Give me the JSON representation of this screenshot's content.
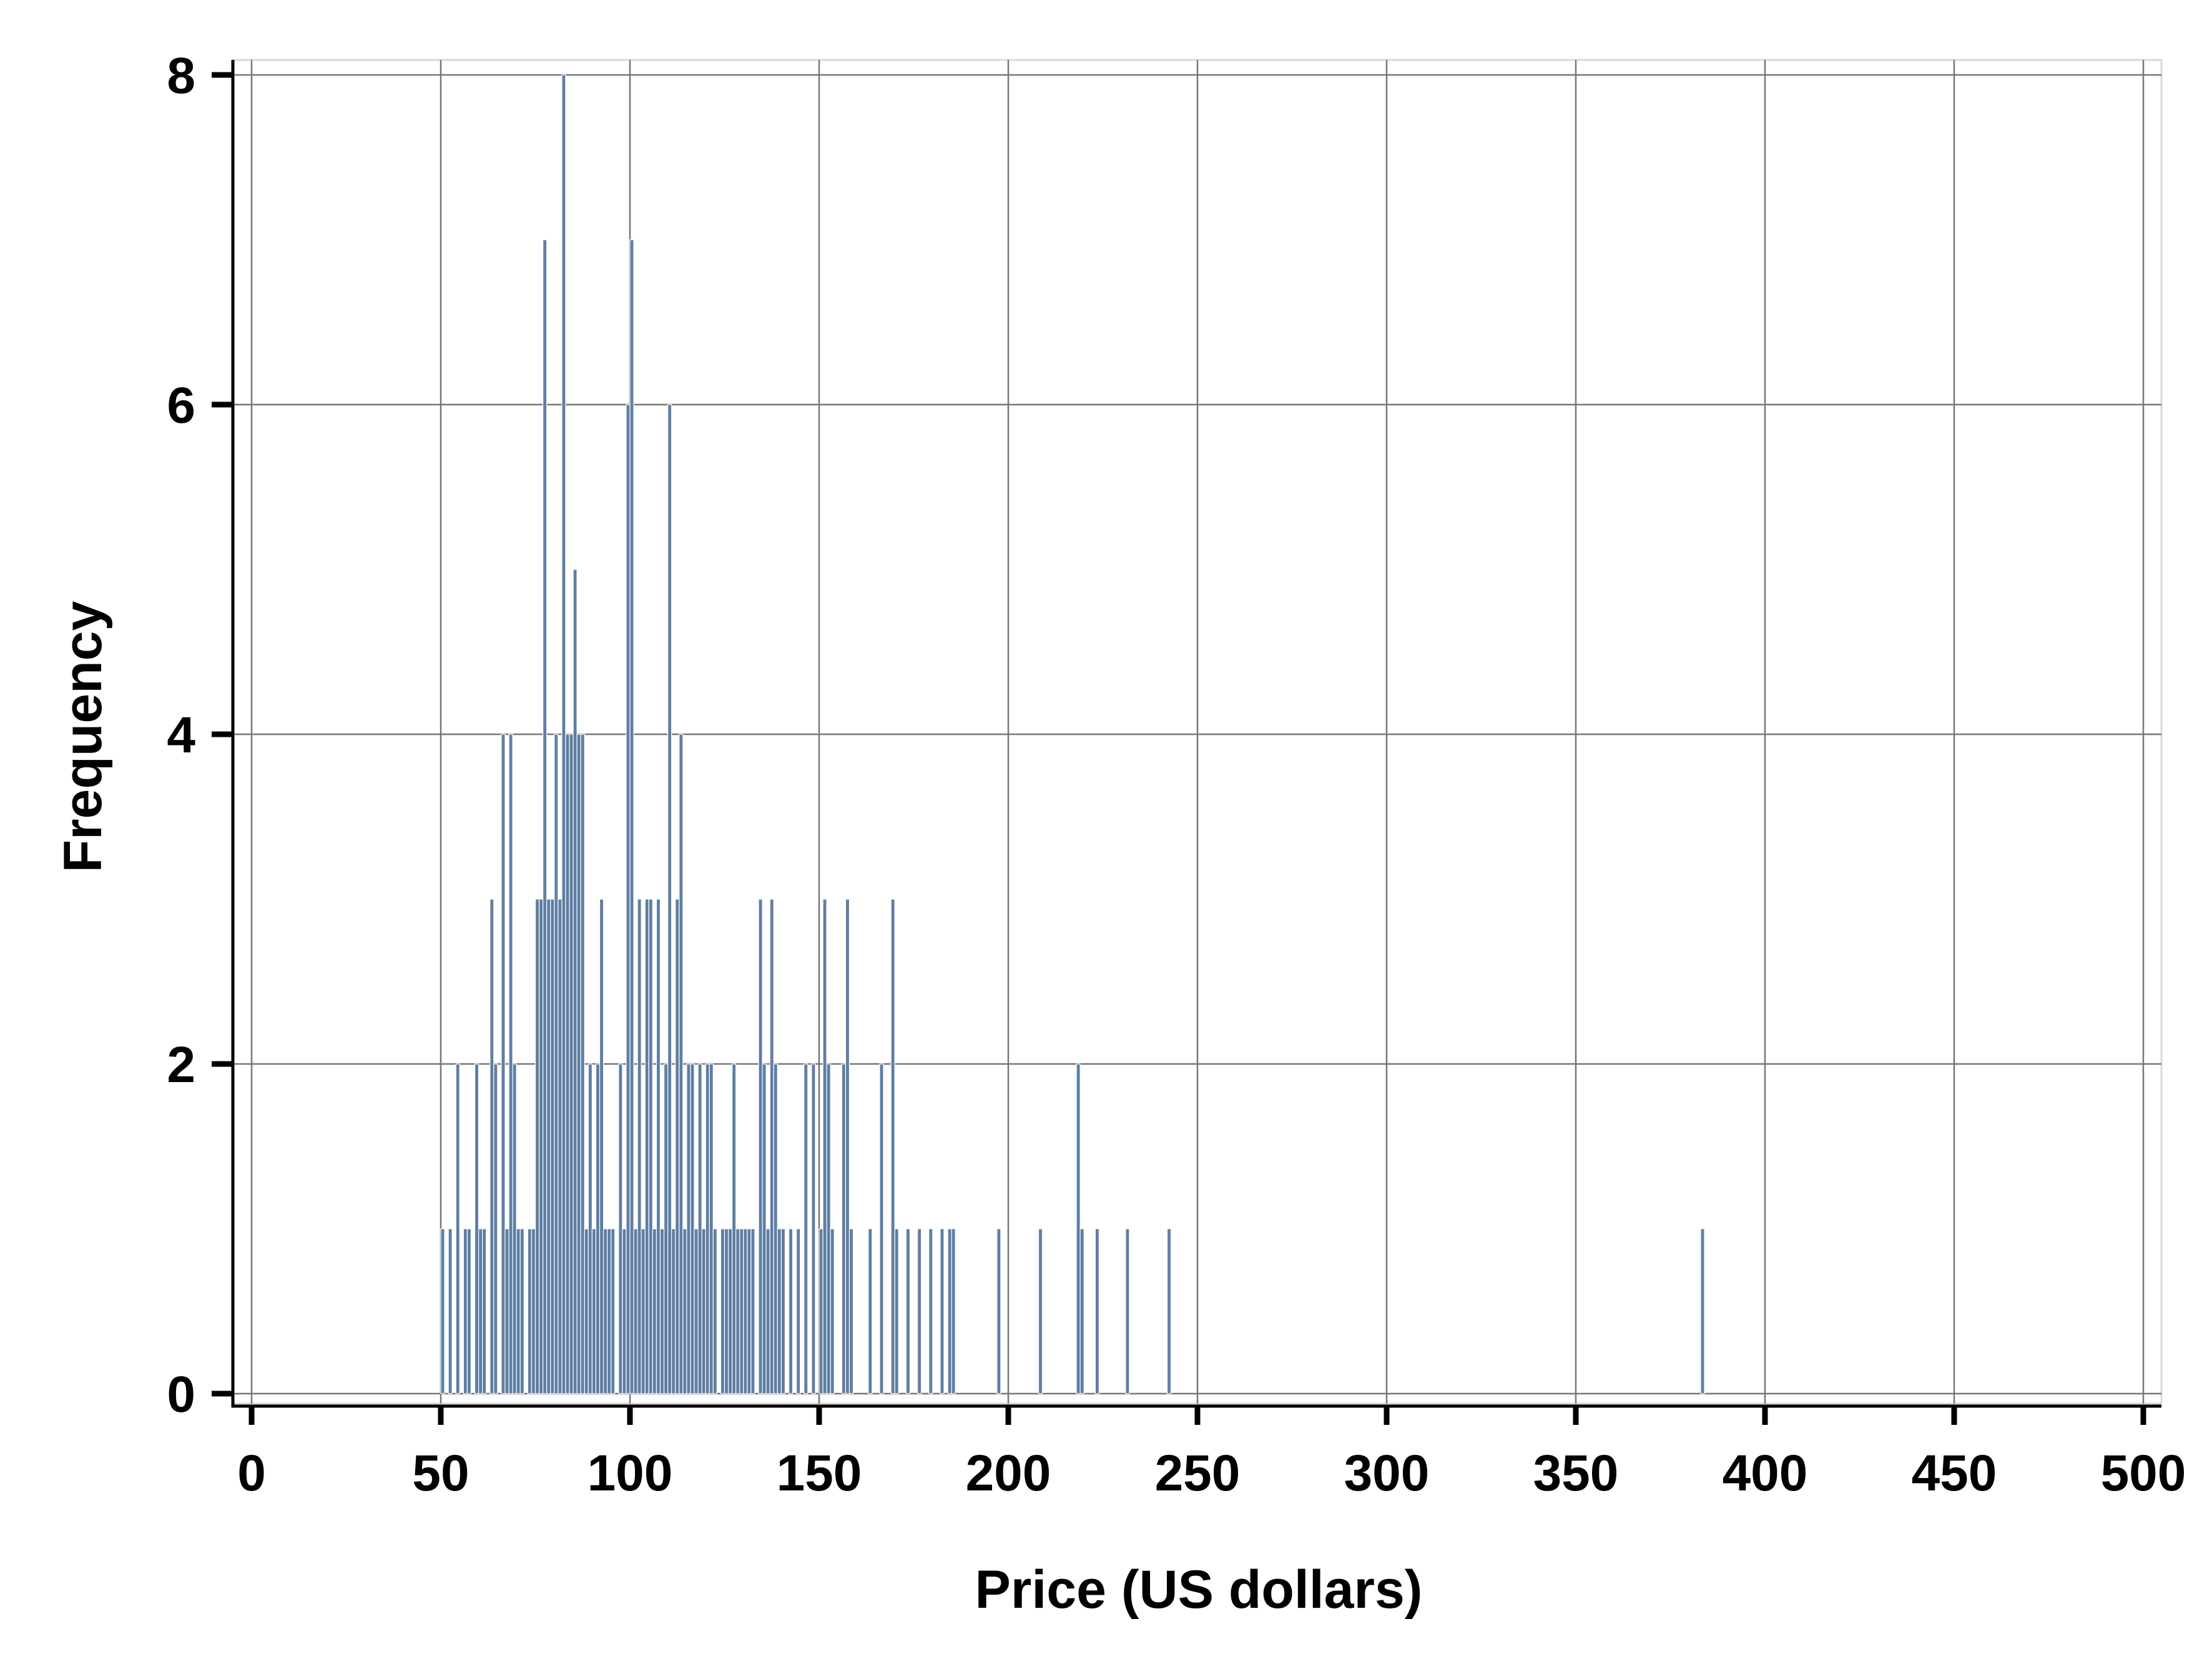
{
  "colors": {
    "bar": "#5f7ea3",
    "grid": "#777777",
    "axis": "#000000",
    "background": "#ffffff"
  },
  "chart_data": {
    "type": "bar",
    "title": "",
    "xlabel": "Price (US dollars)",
    "ylabel": "Frequency",
    "xlim": [
      0,
      500
    ],
    "ylim": [
      0,
      8
    ],
    "x_ticks": [
      "0",
      "50",
      "100",
      "150",
      "200",
      "250",
      "300",
      "350",
      "400",
      "450",
      "500"
    ],
    "y_ticks": [
      "0",
      "2",
      "4",
      "6",
      "8"
    ],
    "grid": true,
    "legend": "none",
    "bin_width": 1,
    "bars": [
      {
        "x": 50,
        "y": 1
      },
      {
        "x": 52,
        "y": 1
      },
      {
        "x": 54,
        "y": 2
      },
      {
        "x": 56,
        "y": 1
      },
      {
        "x": 57,
        "y": 1
      },
      {
        "x": 59,
        "y": 2
      },
      {
        "x": 60,
        "y": 1
      },
      {
        "x": 61,
        "y": 1
      },
      {
        "x": 63,
        "y": 3
      },
      {
        "x": 64,
        "y": 2
      },
      {
        "x": 66,
        "y": 4
      },
      {
        "x": 67,
        "y": 1
      },
      {
        "x": 68,
        "y": 4
      },
      {
        "x": 69,
        "y": 2
      },
      {
        "x": 70,
        "y": 1
      },
      {
        "x": 71,
        "y": 1
      },
      {
        "x": 73,
        "y": 1
      },
      {
        "x": 74,
        "y": 1
      },
      {
        "x": 75,
        "y": 3
      },
      {
        "x": 76,
        "y": 3
      },
      {
        "x": 77,
        "y": 7
      },
      {
        "x": 78,
        "y": 3
      },
      {
        "x": 79,
        "y": 3
      },
      {
        "x": 80,
        "y": 4
      },
      {
        "x": 81,
        "y": 3
      },
      {
        "x": 82,
        "y": 8
      },
      {
        "x": 83,
        "y": 4
      },
      {
        "x": 84,
        "y": 4
      },
      {
        "x": 85,
        "y": 5
      },
      {
        "x": 86,
        "y": 4
      },
      {
        "x": 87,
        "y": 4
      },
      {
        "x": 88,
        "y": 1
      },
      {
        "x": 89,
        "y": 2
      },
      {
        "x": 90,
        "y": 1
      },
      {
        "x": 91,
        "y": 2
      },
      {
        "x": 92,
        "y": 3
      },
      {
        "x": 93,
        "y": 1
      },
      {
        "x": 94,
        "y": 1
      },
      {
        "x": 95,
        "y": 1
      },
      {
        "x": 97,
        "y": 2
      },
      {
        "x": 98,
        "y": 1
      },
      {
        "x": 99,
        "y": 6
      },
      {
        "x": 100,
        "y": 7
      },
      {
        "x": 101,
        "y": 1
      },
      {
        "x": 102,
        "y": 3
      },
      {
        "x": 103,
        "y": 1
      },
      {
        "x": 104,
        "y": 3
      },
      {
        "x": 105,
        "y": 3
      },
      {
        "x": 106,
        "y": 1
      },
      {
        "x": 107,
        "y": 3
      },
      {
        "x": 108,
        "y": 1
      },
      {
        "x": 109,
        "y": 2
      },
      {
        "x": 110,
        "y": 6
      },
      {
        "x": 111,
        "y": 1
      },
      {
        "x": 112,
        "y": 3
      },
      {
        "x": 113,
        "y": 4
      },
      {
        "x": 114,
        "y": 1
      },
      {
        "x": 115,
        "y": 2
      },
      {
        "x": 116,
        "y": 2
      },
      {
        "x": 117,
        "y": 1
      },
      {
        "x": 118,
        "y": 2
      },
      {
        "x": 119,
        "y": 1
      },
      {
        "x": 120,
        "y": 2
      },
      {
        "x": 121,
        "y": 2
      },
      {
        "x": 122,
        "y": 1
      },
      {
        "x": 124,
        "y": 1
      },
      {
        "x": 125,
        "y": 1
      },
      {
        "x": 126,
        "y": 1
      },
      {
        "x": 127,
        "y": 2
      },
      {
        "x": 128,
        "y": 1
      },
      {
        "x": 129,
        "y": 1
      },
      {
        "x": 130,
        "y": 1
      },
      {
        "x": 131,
        "y": 1
      },
      {
        "x": 132,
        "y": 1
      },
      {
        "x": 134,
        "y": 3
      },
      {
        "x": 135,
        "y": 2
      },
      {
        "x": 136,
        "y": 1
      },
      {
        "x": 137,
        "y": 3
      },
      {
        "x": 138,
        "y": 2
      },
      {
        "x": 139,
        "y": 1
      },
      {
        "x": 140,
        "y": 1
      },
      {
        "x": 142,
        "y": 1
      },
      {
        "x": 144,
        "y": 1
      },
      {
        "x": 146,
        "y": 2
      },
      {
        "x": 148,
        "y": 2
      },
      {
        "x": 150,
        "y": 1
      },
      {
        "x": 151,
        "y": 3
      },
      {
        "x": 152,
        "y": 2
      },
      {
        "x": 153,
        "y": 1
      },
      {
        "x": 156,
        "y": 2
      },
      {
        "x": 157,
        "y": 3
      },
      {
        "x": 158,
        "y": 1
      },
      {
        "x": 163,
        "y": 1
      },
      {
        "x": 166,
        "y": 2
      },
      {
        "x": 169,
        "y": 3
      },
      {
        "x": 170,
        "y": 1
      },
      {
        "x": 173,
        "y": 1
      },
      {
        "x": 176,
        "y": 1
      },
      {
        "x": 179,
        "y": 1
      },
      {
        "x": 182,
        "y": 1
      },
      {
        "x": 184,
        "y": 1
      },
      {
        "x": 185,
        "y": 1
      },
      {
        "x": 197,
        "y": 1
      },
      {
        "x": 208,
        "y": 1
      },
      {
        "x": 218,
        "y": 2
      },
      {
        "x": 219,
        "y": 1
      },
      {
        "x": 223,
        "y": 1
      },
      {
        "x": 231,
        "y": 1
      },
      {
        "x": 242,
        "y": 1
      },
      {
        "x": 383,
        "y": 1
      }
    ]
  }
}
